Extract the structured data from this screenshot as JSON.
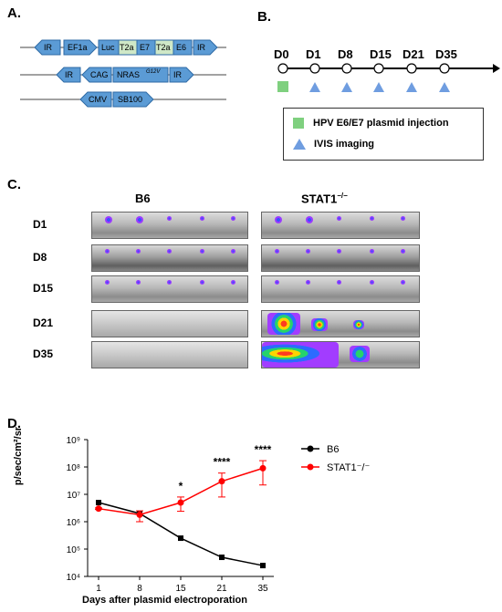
{
  "panels": {
    "a": "A.",
    "b": "B.",
    "c": "C.",
    "d": "D."
  },
  "panel_a": {
    "constructs": [
      {
        "elements": [
          "IR",
          "EF1a",
          "Luc",
          "T2a",
          "E7",
          "T2a",
          "E6",
          "IR"
        ]
      },
      {
        "elements": [
          "IR",
          "CAG",
          "NRAS",
          "G12V",
          "IR"
        ]
      },
      {
        "elements": [
          "CMV",
          "SB100"
        ]
      }
    ]
  },
  "panel_b": {
    "days": [
      "D0",
      "D1",
      "D8",
      "D15",
      "D21",
      "D35"
    ],
    "legend": [
      {
        "label": "HPV E6/E7 plasmid injection",
        "color": "#7fd07f",
        "icon": "green-square"
      },
      {
        "label": "IVIS imaging",
        "color": "#6f9de0",
        "icon": "blue-triangle"
      }
    ]
  },
  "panel_c": {
    "columns": [
      "B6",
      "STAT1"
    ],
    "column_sup": "−/−",
    "rows": [
      "D1",
      "D8",
      "D15",
      "D21",
      "D35"
    ]
  },
  "chart_data": {
    "type": "line",
    "xlabel": "Days after plasmid electroporation",
    "ylabel": "p/sec/cm²/sr",
    "x": [
      1,
      8,
      15,
      21,
      35
    ],
    "y_scale": "log",
    "ylim": [
      10000,
      1000000000
    ],
    "y_ticks": [
      "10⁴",
      "10⁵",
      "10⁶",
      "10⁷",
      "10⁸",
      "10⁹"
    ],
    "series": [
      {
        "name": "B6",
        "color": "#000000",
        "values": [
          5000000,
          2000000,
          250000,
          50000,
          25000
        ]
      },
      {
        "name": "STAT1⁻/⁻",
        "color": "#ff0000",
        "values": [
          3000000,
          1800000,
          5000000,
          30000000,
          90000000
        ],
        "err_low": [
          2800000,
          1000000,
          2400000,
          8000000,
          22000000
        ],
        "err_high": [
          3200000,
          2500000,
          8000000,
          60000000,
          170000000
        ]
      }
    ],
    "significance": [
      {
        "x": 15,
        "label": "*"
      },
      {
        "x": 21,
        "label": "****"
      },
      {
        "x": 35,
        "label": "****"
      }
    ],
    "legend_position": "right"
  }
}
